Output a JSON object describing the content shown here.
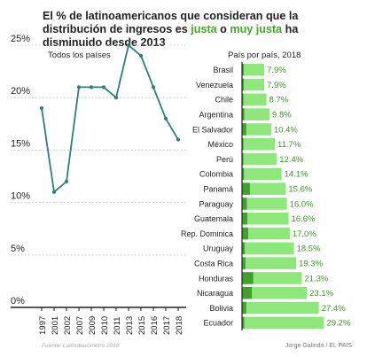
{
  "title": {
    "part1": "El % de latinoamericanos que consideran que la distribución de ingresos es ",
    "hl1": "justa",
    "part2": " o ",
    "hl2": "muy justa",
    "part3": " ha disminuido desde 2013"
  },
  "source": "Fuente: Latinobarómetro 2018",
  "credit": "Jorge Galindo / EL PAIS",
  "colors": {
    "line": "#2b8078",
    "bar_light": "#8de77a",
    "bar_dark": "#3fa02c",
    "value_text": "#3a9a25",
    "grid": "#bbbbbb",
    "text": "#222222"
  },
  "chart_data": [
    {
      "type": "line",
      "label": "Todos los países",
      "x": [
        "1997",
        "2001",
        "2002",
        "2007",
        "2009",
        "2010",
        "2011",
        "2013",
        "2015",
        "2016",
        "2017",
        "2018"
      ],
      "values": [
        19,
        11,
        12,
        21,
        21,
        21,
        20,
        25,
        24,
        21,
        18,
        16
      ],
      "yticks": [
        "25%",
        "20%",
        "15%",
        "10%",
        "5%",
        "0%"
      ],
      "ytick_values": [
        25,
        20,
        15,
        10,
        5,
        0
      ],
      "ylim": [
        0,
        25
      ],
      "grid": "horizontal dashed"
    },
    {
      "type": "bar",
      "orientation": "horizontal",
      "label": "País por país, 2018",
      "categories": [
        "Brasil",
        "Venezuela",
        "Chile",
        "Argentina",
        "El Salvador",
        "México",
        "Perú",
        "Colombia",
        "Panamá",
        "Paraguay",
        "Guatemala",
        "Rep. Dominica",
        "Uruguay",
        "Costa Rica",
        "Honduras",
        "Nicaragua",
        "Bolivia",
        "Ecuador"
      ],
      "values": [
        7.9,
        7.9,
        8.7,
        9.8,
        10.4,
        11.7,
        12.4,
        14.1,
        15.6,
        16.0,
        16.6,
        17.0,
        18.5,
        19.3,
        21.3,
        23.1,
        27.4,
        29.2
      ],
      "value_labels": [
        "7.9%",
        "7.9%",
        "8.7%",
        "9.8%",
        "10.4%",
        "11.7%",
        "12.4%",
        "14.1%",
        "15.6%",
        "16.0%",
        "16.6%",
        "17.0%",
        "18.5%",
        "19.3%",
        "21.3%",
        "23.1%",
        "27.4%",
        "29.2%"
      ],
      "muy_justa_values": [
        0.6,
        0.6,
        0.5,
        0.8,
        1.5,
        0.5,
        0.5,
        0.7,
        2.8,
        1.7,
        1.9,
        2.2,
        1.0,
        1.2,
        4.0,
        3.5,
        1.5,
        0.8
      ],
      "xlim": [
        0,
        30
      ]
    }
  ]
}
